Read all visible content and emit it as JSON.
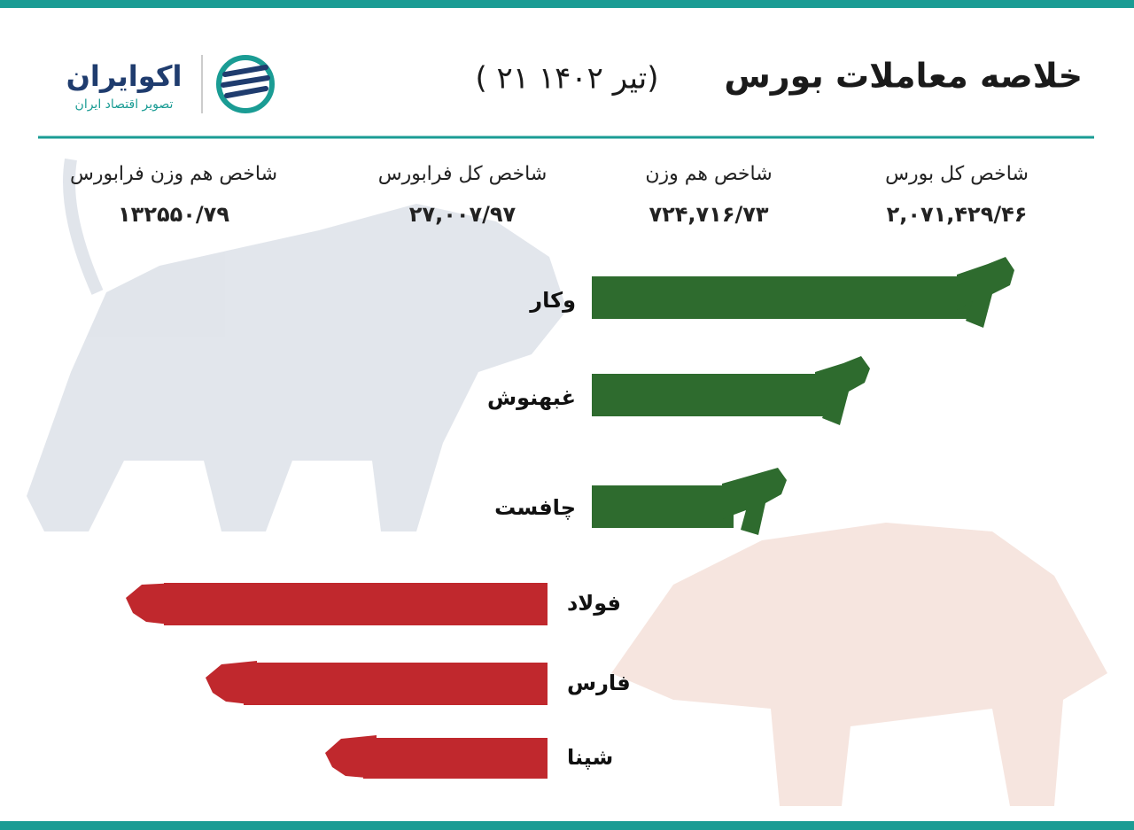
{
  "header": {
    "title": "خلاصه معاملات بورس",
    "date": "( ۲۱ تیر ۱۴۰۲)"
  },
  "logo": {
    "name": "اکوایران",
    "tagline": "تصویر اقتصاد ایران"
  },
  "indices": [
    {
      "label": "شاخص کل بورس",
      "value": "۲,۰۷۱,۴۲۹/۴۶"
    },
    {
      "label": "شاخص هم وزن",
      "value": "۷۲۴,۷۱۶/۷۳"
    },
    {
      "label": "شاخص کل فرابورس",
      "value": "۲۷,۰۰۷/۹۷"
    },
    {
      "label": "شاخص هم وزن فرابورس",
      "value": "۱۳۲۵۵۰/۷۹"
    }
  ],
  "gainers": [
    "وکار",
    "غبهنوش",
    "چافست"
  ],
  "losers": [
    "فولاد",
    "فارس",
    "شپنا"
  ]
}
